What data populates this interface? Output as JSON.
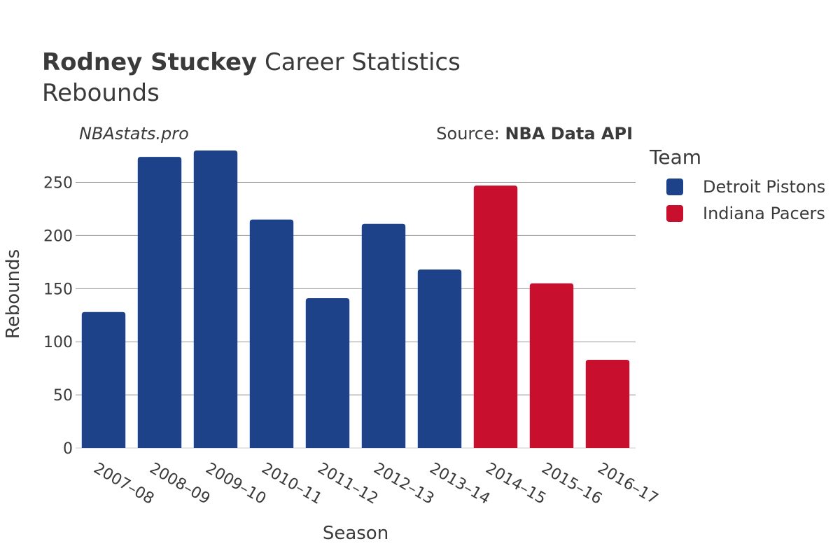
{
  "header": {
    "player": "Rodney Stuckey",
    "title_rest": "Career Statistics",
    "subtitle": "Rebounds",
    "brand": "NBAstats.pro",
    "source_label": "Source:",
    "source_value": "NBA Data API"
  },
  "legend": {
    "title": "Team",
    "items": [
      {
        "label": "Detroit Pistons",
        "color": "#1d428a"
      },
      {
        "label": "Indiana Pacers",
        "color": "#c8102e"
      }
    ]
  },
  "chart_data": {
    "type": "bar",
    "title": "Rodney Stuckey Career Statistics",
    "subtitle": "Rebounds",
    "xlabel": "Season",
    "ylabel": "Rebounds",
    "ylim": [
      0,
      280
    ],
    "yticks": [
      0,
      50,
      100,
      150,
      200,
      250
    ],
    "categories": [
      "2007–08",
      "2008–09",
      "2009–10",
      "2010–11",
      "2011–12",
      "2012–13",
      "2013–14",
      "2014–15",
      "2015–16",
      "2016–17"
    ],
    "values": [
      128,
      274,
      280,
      215,
      141,
      211,
      168,
      247,
      155,
      83
    ],
    "teams": [
      "Detroit Pistons",
      "Detroit Pistons",
      "Detroit Pistons",
      "Detroit Pistons",
      "Detroit Pistons",
      "Detroit Pistons",
      "Detroit Pistons",
      "Indiana Pacers",
      "Indiana Pacers",
      "Indiana Pacers"
    ],
    "team_colors": {
      "Detroit Pistons": "#1d428a",
      "Indiana Pacers": "#c8102e"
    },
    "grid": true,
    "legend_position": "right"
  }
}
